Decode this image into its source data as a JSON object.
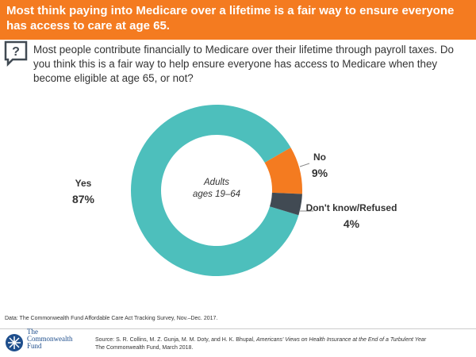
{
  "chart_data": {
    "type": "donut",
    "title": "Most think paying into Medicare over a lifetime is a fair way to ensure everyone has access to care at age 65.",
    "question": "Most people contribute financially to Medicare over their lifetime through payroll taxes. Do you think this is a fair way to help ensure everyone has access to Medicare when they become eligible at age 65, or not?",
    "center_label": [
      "Adults",
      "ages 19–64"
    ],
    "categories": [
      "Yes",
      "No",
      "Don't know/Refused"
    ],
    "values": [
      87,
      9,
      4
    ],
    "value_labels": [
      "87%",
      "9%",
      "4%"
    ],
    "colors": [
      "#4dbfbc",
      "#f47b20",
      "#414a53"
    ]
  },
  "data_note": "Data: The Commonwealth Fund Affordable Care Act Tracking Survey, Nov.–Dec. 2017.",
  "logo": [
    "The",
    "Commonwealth",
    "Fund"
  ],
  "source": {
    "prefix": "Source: S. R. Collins, M. Z. Gunja, M. M. Doty, and H. K. Bhupal, ",
    "title": "Americans' Views on Health Insurance at the End of a Turbulent Year",
    "suffix": "The Commonwealth Fund, March 2018."
  }
}
